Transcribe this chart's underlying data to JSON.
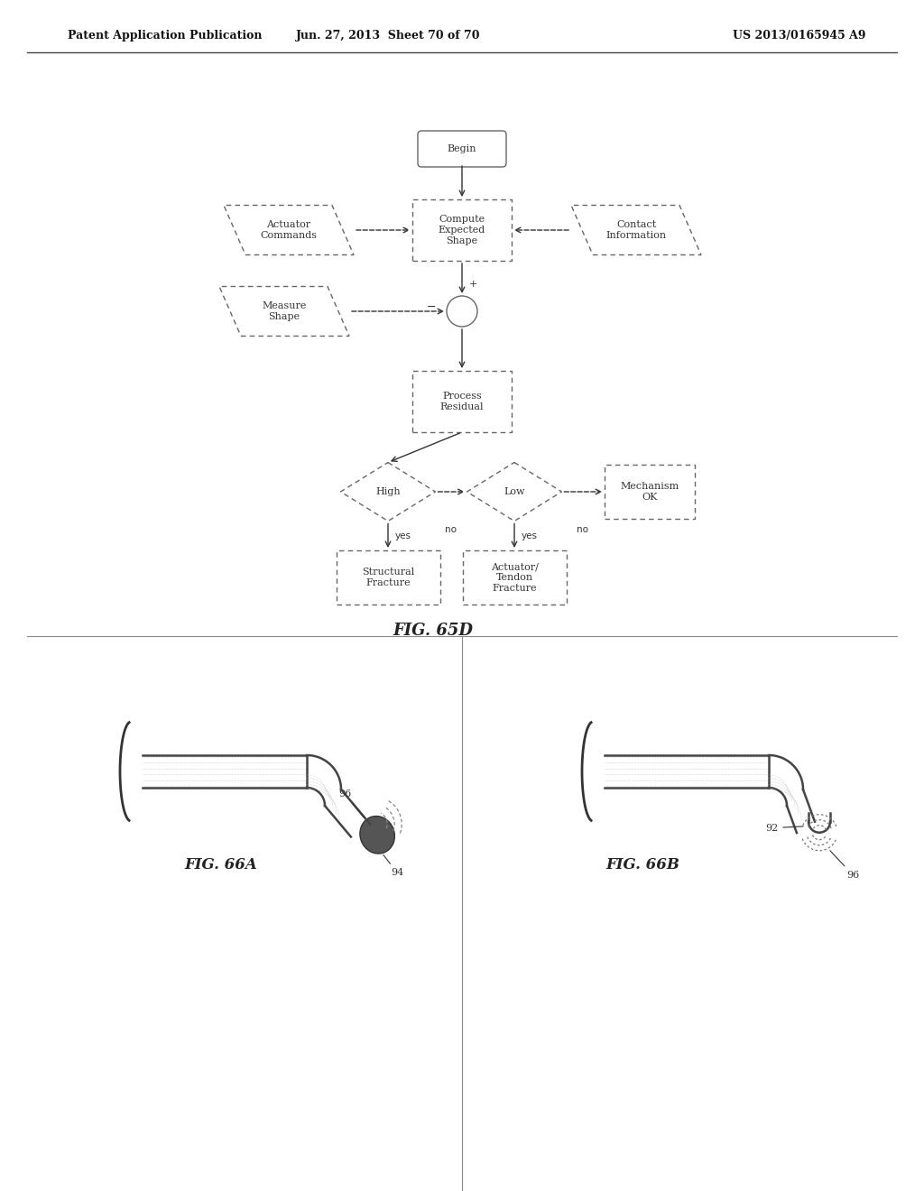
{
  "title_left": "Patent Application Publication",
  "title_mid": "Jun. 27, 2013  Sheet 70 of 70",
  "title_right": "US 2013/0165945 A9",
  "fig_label_flowchart": "FIG. 65D",
  "fig_label_66a": "FIG. 66A",
  "fig_label_66b": "FIG. 66B",
  "bg_color": "#ffffff",
  "ec": "#666666",
  "tc": "#333333",
  "ac": "#333333"
}
